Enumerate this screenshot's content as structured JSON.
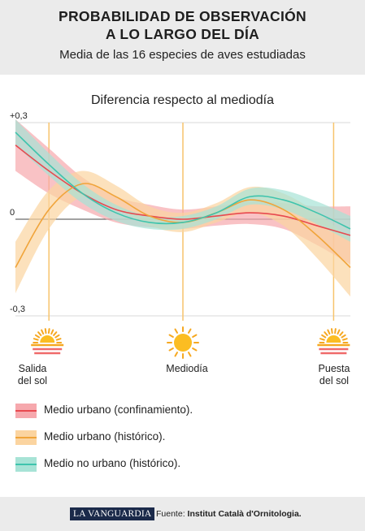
{
  "header": {
    "title_line1": "PROBABILIDAD DE OBSERVACIÓN",
    "title_line2": "A LO  LARGO DEL DÍA",
    "subtitle": "Media de las 16 especies de aves estudiadas"
  },
  "chart_data": {
    "type": "line",
    "title": "Diferencia respecto al mediodía",
    "ylim": [
      -0.3,
      0.3
    ],
    "y_ticks": [
      "+0,3",
      "0",
      "-0,3"
    ],
    "x": [
      0,
      0.1,
      0.2,
      0.3,
      0.4,
      0.5,
      0.6,
      0.7,
      0.8,
      0.9,
      1.0
    ],
    "series": [
      {
        "name": "Medio urbano (confinamiento).",
        "color": "#e8494f",
        "band_color": "#f6a8ad",
        "values": [
          0.23,
          0.15,
          0.08,
          0.03,
          0.01,
          0.0,
          0.01,
          0.02,
          0.01,
          -0.02,
          -0.05
        ],
        "band": [
          0.08,
          0.07,
          0.05,
          0.04,
          0.035,
          0.03,
          0.03,
          0.035,
          0.04,
          0.06,
          0.09
        ]
      },
      {
        "name": "Medio urbano (histórico).",
        "color": "#f0a43a",
        "band_color": "#fbd4a0",
        "values": [
          -0.15,
          0.03,
          0.11,
          0.07,
          0.01,
          -0.01,
          0.02,
          0.06,
          0.03,
          -0.05,
          -0.15
        ],
        "band": [
          0.08,
          0.06,
          0.04,
          0.035,
          0.03,
          0.03,
          0.03,
          0.04,
          0.05,
          0.07,
          0.09
        ]
      },
      {
        "name": "Medio no urbano (histórico).",
        "color": "#3fc4ad",
        "band_color": "#a7e3d6",
        "values": [
          0.27,
          0.17,
          0.08,
          0.02,
          -0.01,
          -0.01,
          0.02,
          0.07,
          0.06,
          0.02,
          -0.03
        ],
        "band": [
          0.04,
          0.035,
          0.03,
          0.025,
          0.02,
          0.02,
          0.02,
          0.025,
          0.03,
          0.035,
          0.04
        ]
      }
    ],
    "markers": [
      {
        "label_line1": "Salida",
        "label_line2": "del sol",
        "x": 0.1,
        "icon": "sunrise-icon"
      },
      {
        "label_line1": "Mediodía",
        "label_line2": "",
        "x": 0.5,
        "icon": "sun-icon"
      },
      {
        "label_line1": "Puesta",
        "label_line2": "del sol",
        "x": 0.95,
        "icon": "sunset-icon"
      }
    ]
  },
  "footer": {
    "logo": "LA VANGUARDIA",
    "source_prefix": "Fuente:",
    "source_text": "Institut Català d'Ornitologia."
  }
}
